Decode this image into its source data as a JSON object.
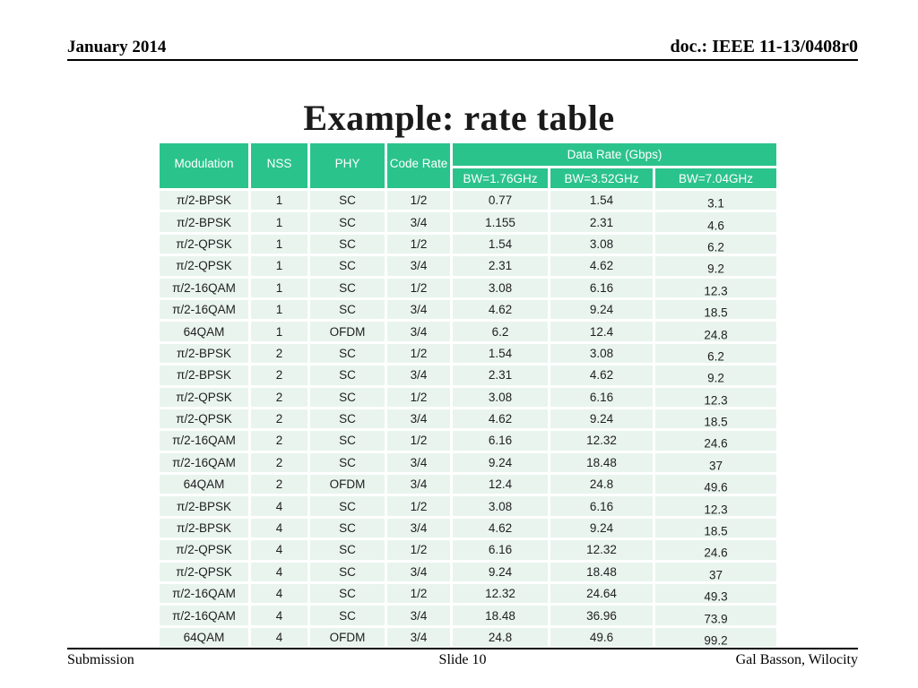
{
  "slide": {
    "header_left": "January 2014",
    "header_right": "doc.: IEEE 11-13/0408r0",
    "title": "Example: rate table",
    "footer_left": "Submission",
    "footer_center": "Slide 10",
    "footer_right": "Gal Basson, Wilocity"
  },
  "colors": {
    "table_header_green": "#2bc38c",
    "table_row_tint": "#e9f4ef",
    "header_text": "#ffffff",
    "body_text": "#1f1f1f"
  },
  "table": {
    "group_header": "Data Rate (Gbps)",
    "columns": [
      "Modulation",
      "NSS",
      "PHY",
      "Code Rate"
    ],
    "bw_columns": [
      "BW=1.76GHz",
      "BW=3.52GHz",
      "BW=7.04GHz"
    ],
    "rows": [
      [
        "π/2-BPSK",
        "1",
        "SC",
        "1/2",
        "0.77",
        "1.54",
        "3.1"
      ],
      [
        "π/2-BPSK",
        "1",
        "SC",
        "3/4",
        "1.155",
        "2.31",
        "4.6"
      ],
      [
        "π/2-QPSK",
        "1",
        "SC",
        "1/2",
        "1.54",
        "3.08",
        "6.2"
      ],
      [
        "π/2-QPSK",
        "1",
        "SC",
        "3/4",
        "2.31",
        "4.62",
        "9.2"
      ],
      [
        "π/2-16QAM",
        "1",
        "SC",
        "1/2",
        "3.08",
        "6.16",
        "12.3"
      ],
      [
        "π/2-16QAM",
        "1",
        "SC",
        "3/4",
        "4.62",
        "9.24",
        "18.5"
      ],
      [
        "64QAM",
        "1",
        "OFDM",
        "3/4",
        "6.2",
        "12.4",
        "24.8"
      ],
      [
        "π/2-BPSK",
        "2",
        "SC",
        "1/2",
        "1.54",
        "3.08",
        "6.2"
      ],
      [
        "π/2-BPSK",
        "2",
        "SC",
        "3/4",
        "2.31",
        "4.62",
        "9.2"
      ],
      [
        "π/2-QPSK",
        "2",
        "SC",
        "1/2",
        "3.08",
        "6.16",
        "12.3"
      ],
      [
        "π/2-QPSK",
        "2",
        "SC",
        "3/4",
        "4.62",
        "9.24",
        "18.5"
      ],
      [
        "π/2-16QAM",
        "2",
        "SC",
        "1/2",
        "6.16",
        "12.32",
        "24.6"
      ],
      [
        "π/2-16QAM",
        "2",
        "SC",
        "3/4",
        "9.24",
        "18.48",
        "37"
      ],
      [
        "64QAM",
        "2",
        "OFDM",
        "3/4",
        "12.4",
        "24.8",
        "49.6"
      ],
      [
        "π/2-BPSK",
        "4",
        "SC",
        "1/2",
        "3.08",
        "6.16",
        "12.3"
      ],
      [
        "π/2-BPSK",
        "4",
        "SC",
        "3/4",
        "4.62",
        "9.24",
        "18.5"
      ],
      [
        "π/2-QPSK",
        "4",
        "SC",
        "1/2",
        "6.16",
        "12.32",
        "24.6"
      ],
      [
        "π/2-QPSK",
        "4",
        "SC",
        "3/4",
        "9.24",
        "18.48",
        "37"
      ],
      [
        "π/2-16QAM",
        "4",
        "SC",
        "1/2",
        "12.32",
        "24.64",
        "49.3"
      ],
      [
        "π/2-16QAM",
        "4",
        "SC",
        "3/4",
        "18.48",
        "36.96",
        "73.9"
      ],
      [
        "64QAM",
        "4",
        "OFDM",
        "3/4",
        "24.8",
        "49.6",
        "99.2"
      ]
    ],
    "column_keys": [
      "modulation",
      "nss",
      "phy",
      "code-rate",
      "bw-1-76",
      "bw-3-52",
      "bw-7-04"
    ]
  }
}
